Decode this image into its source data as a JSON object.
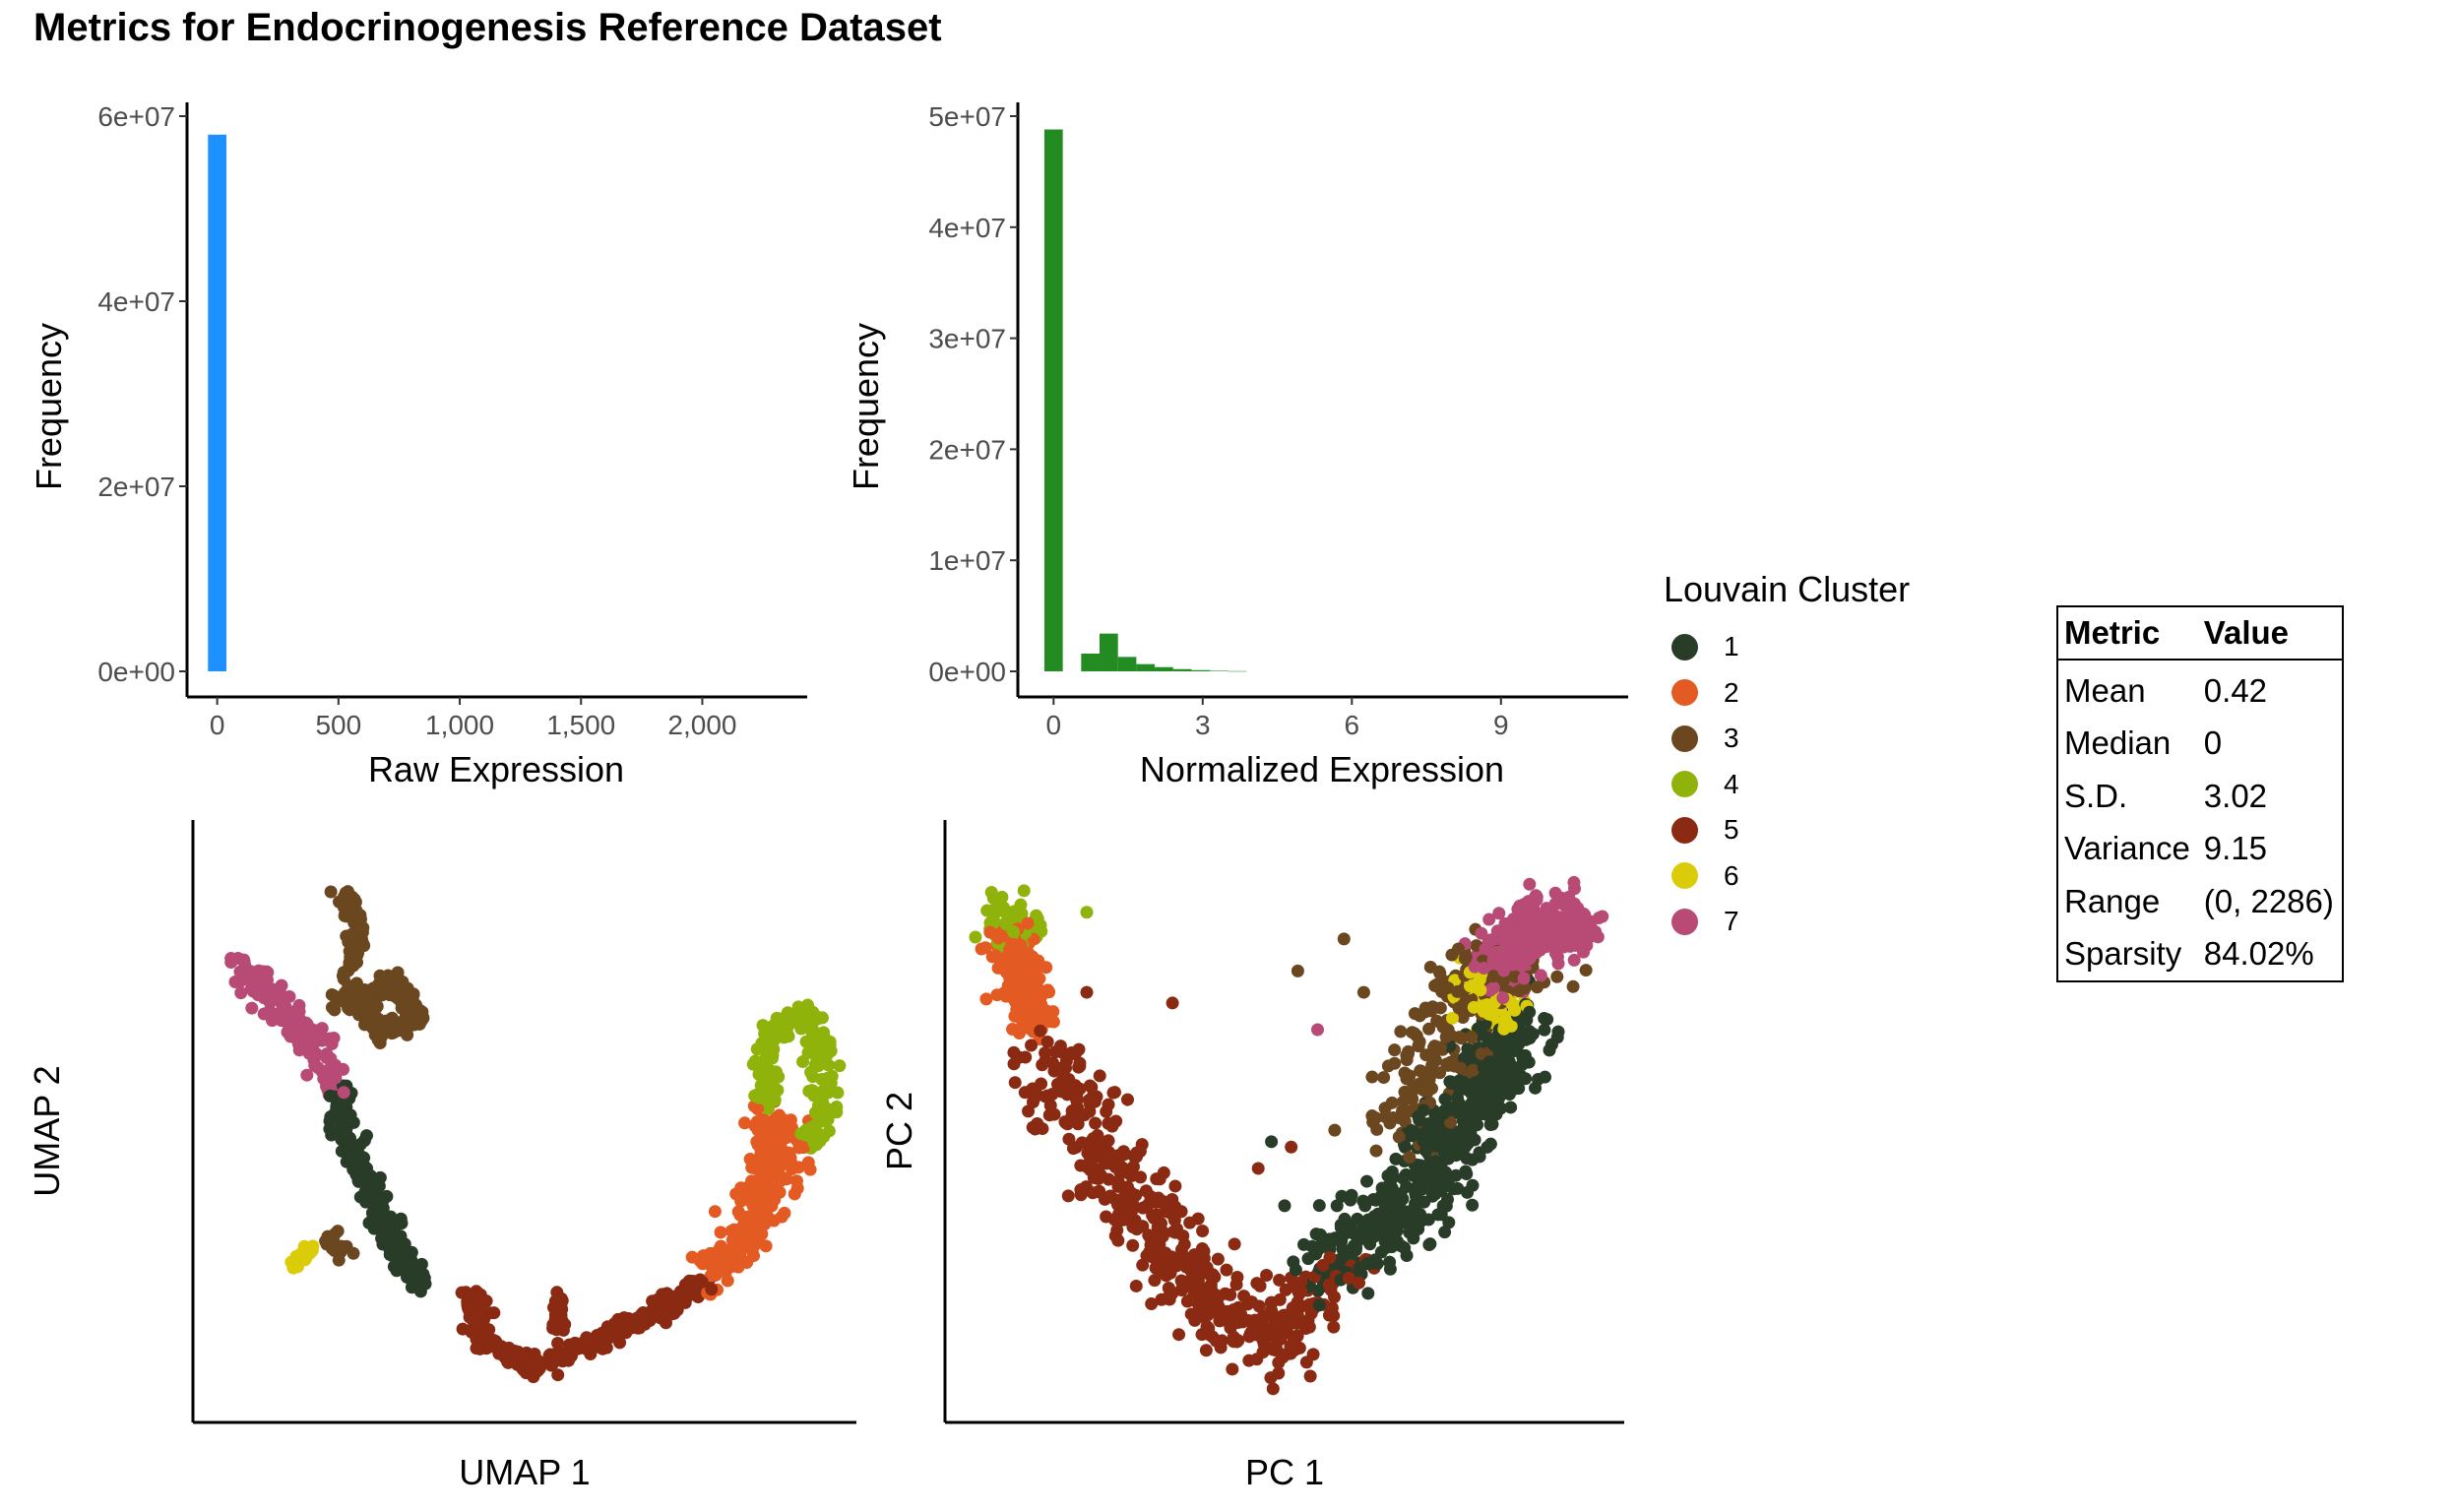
{
  "title": "Metrics for Endocrinogenesis Reference Dataset",
  "chart_data": [
    {
      "type": "bar",
      "name": "raw-expression-histogram",
      "xlabel": "Raw Expression",
      "ylabel": "Frequency",
      "xlim": [
        -100,
        2400
      ],
      "ylim": [
        0,
        60000000
      ],
      "xticks": [
        0,
        500,
        1000,
        1500,
        2000
      ],
      "xtick_labels": [
        "0",
        "500",
        "1,000",
        "1,500",
        "2,000"
      ],
      "yticks": [
        0,
        20000000,
        40000000,
        60000000
      ],
      "ytick_labels": [
        "0e+00",
        "2e+07",
        "4e+07",
        "6e+07"
      ],
      "bin_width": 76,
      "bins": [
        {
          "start": -38,
          "end": 38,
          "count": 58000000
        }
      ],
      "color": "#1e90ff",
      "grid": false
    },
    {
      "type": "bar",
      "name": "normalized-expression-histogram",
      "xlabel": "Normalized Expression",
      "ylabel": "Frequency",
      "xlim": [
        -0.6,
        11.4
      ],
      "ylim": [
        0,
        50000000
      ],
      "xticks": [
        0,
        3,
        6,
        9
      ],
      "xtick_labels": [
        "0",
        "3",
        "6",
        "9"
      ],
      "yticks": [
        0,
        10000000,
        20000000,
        30000000,
        40000000,
        50000000
      ],
      "ytick_labels": [
        "0e+00",
        "1e+07",
        "2e+07",
        "3e+07",
        "4e+07",
        "5e+07"
      ],
      "bin_width": 0.37,
      "bins": [
        {
          "start": -0.185,
          "end": 0.185,
          "count": 48800000
        },
        {
          "start": 0.555,
          "end": 0.925,
          "count": 1600000
        },
        {
          "start": 0.925,
          "end": 1.295,
          "count": 3400000
        },
        {
          "start": 1.295,
          "end": 1.665,
          "count": 1300000
        },
        {
          "start": 1.665,
          "end": 2.035,
          "count": 650000
        },
        {
          "start": 2.035,
          "end": 2.405,
          "count": 380000
        },
        {
          "start": 2.405,
          "end": 2.775,
          "count": 200000
        },
        {
          "start": 2.775,
          "end": 3.145,
          "count": 110000
        },
        {
          "start": 3.145,
          "end": 3.515,
          "count": 50000
        },
        {
          "start": 3.515,
          "end": 3.885,
          "count": 20000
        }
      ],
      "color": "#228b22",
      "grid": false
    },
    {
      "type": "scatter",
      "name": "umap-scatter",
      "xlabel": "UMAP 1",
      "ylabel": "UMAP 2",
      "xlim": [
        0,
        1
      ],
      "ylim": [
        0,
        1
      ],
      "show_ticks": false,
      "grid": false,
      "cluster_paths": [
        {
          "cluster": "7",
          "n": 160,
          "spread": 0.014,
          "points": [
            [
              0.05,
              0.81
            ],
            [
              0.1,
              0.76
            ],
            [
              0.15,
              0.7
            ],
            [
              0.19,
              0.62
            ],
            [
              0.21,
              0.57
            ]
          ]
        },
        {
          "cluster": "3",
          "n": 220,
          "spread": 0.01,
          "points": [
            [
              0.22,
              0.95
            ],
            [
              0.24,
              0.88
            ],
            [
              0.23,
              0.81
            ],
            [
              0.22,
              0.74
            ],
            [
              0.3,
              0.78
            ],
            [
              0.33,
              0.71
            ],
            [
              0.28,
              0.68
            ],
            [
              0.24,
              0.76
            ]
          ]
        },
        {
          "cluster": "3",
          "n": 22,
          "spread": 0.008,
          "points": [
            [
              0.19,
              0.3
            ],
            [
              0.22,
              0.27
            ]
          ]
        },
        {
          "cluster": "1",
          "n": 220,
          "spread": 0.011,
          "points": [
            [
              0.21,
              0.58
            ],
            [
              0.22,
              0.5
            ],
            [
              0.25,
              0.42
            ],
            [
              0.28,
              0.34
            ],
            [
              0.3,
              0.27
            ],
            [
              0.34,
              0.21
            ]
          ]
        },
        {
          "cluster": "6",
          "n": 22,
          "spread": 0.005,
          "points": [
            [
              0.14,
              0.25
            ],
            [
              0.17,
              0.28
            ]
          ]
        },
        {
          "cluster": "5",
          "n": 320,
          "spread": 0.01,
          "points": [
            [
              0.42,
              0.2
            ],
            [
              0.43,
              0.12
            ],
            [
              0.47,
              0.08
            ],
            [
              0.52,
              0.06
            ],
            [
              0.6,
              0.1
            ],
            [
              0.7,
              0.16
            ],
            [
              0.78,
              0.22
            ]
          ]
        },
        {
          "cluster": "5",
          "n": 30,
          "spread": 0.008,
          "points": [
            [
              0.55,
              0.19
            ],
            [
              0.55,
              0.12
            ]
          ]
        },
        {
          "cluster": "2",
          "n": 260,
          "spread": 0.018,
          "points": [
            [
              0.78,
              0.23
            ],
            [
              0.84,
              0.29
            ],
            [
              0.87,
              0.36
            ],
            [
              0.87,
              0.44
            ],
            [
              0.88,
              0.52
            ],
            [
              0.91,
              0.42
            ]
          ]
        },
        {
          "cluster": "4",
          "n": 200,
          "spread": 0.01,
          "points": [
            [
              0.87,
              0.55
            ],
            [
              0.88,
              0.6
            ],
            [
              0.87,
              0.66
            ],
            [
              0.91,
              0.71
            ],
            [
              0.94,
              0.72
            ],
            [
              0.96,
              0.64
            ],
            [
              0.96,
              0.52
            ],
            [
              0.94,
              0.47
            ]
          ]
        }
      ]
    },
    {
      "type": "scatter",
      "name": "pca-scatter",
      "xlabel": "PC 1",
      "ylabel": "PC 2",
      "xlim": [
        0,
        1
      ],
      "ylim": [
        0,
        1
      ],
      "show_ticks": false,
      "grid": false,
      "cluster_paths": [
        {
          "cluster": "4",
          "n": 70,
          "spread": 0.02,
          "points": [
            [
              0.07,
              0.91
            ],
            [
              0.1,
              0.87
            ]
          ]
        },
        {
          "cluster": "2",
          "n": 170,
          "spread": 0.02,
          "points": [
            [
              0.08,
              0.87
            ],
            [
              0.1,
              0.78
            ],
            [
              0.13,
              0.7
            ]
          ]
        },
        {
          "cluster": "5",
          "n": 480,
          "spread": 0.03,
          "points": [
            [
              0.14,
              0.64
            ],
            [
              0.2,
              0.5
            ],
            [
              0.27,
              0.37
            ],
            [
              0.35,
              0.25
            ],
            [
              0.42,
              0.14
            ],
            [
              0.47,
              0.1
            ],
            [
              0.52,
              0.17
            ],
            [
              0.58,
              0.23
            ]
          ]
        },
        {
          "cluster": "1",
          "n": 520,
          "spread": 0.034,
          "points": [
            [
              0.56,
              0.24
            ],
            [
              0.65,
              0.32
            ],
            [
              0.72,
              0.42
            ],
            [
              0.77,
              0.52
            ],
            [
              0.82,
              0.63
            ],
            [
              0.86,
              0.7
            ]
          ]
        },
        {
          "cluster": "3",
          "n": 200,
          "spread": 0.034,
          "points": [
            [
              0.68,
              0.5
            ],
            [
              0.74,
              0.68
            ],
            [
              0.78,
              0.78
            ],
            [
              0.84,
              0.81
            ],
            [
              0.88,
              0.8
            ]
          ]
        },
        {
          "cluster": "6",
          "n": 60,
          "spread": 0.018,
          "points": [
            [
              0.76,
              0.78
            ],
            [
              0.81,
              0.76
            ],
            [
              0.83,
              0.69
            ]
          ]
        },
        {
          "cluster": "7",
          "n": 260,
          "spread": 0.028,
          "points": [
            [
              0.82,
              0.79
            ],
            [
              0.87,
              0.86
            ],
            [
              0.91,
              0.91
            ],
            [
              0.93,
              0.85
            ]
          ]
        }
      ],
      "outliers": [
        {
          "cluster": "5",
          "points": [
            [
              0.33,
              0.74
            ],
            [
              0.2,
              0.76
            ],
            [
              0.51,
              0.47
            ],
            [
              0.46,
              0.43
            ]
          ]
        },
        {
          "cluster": "3",
          "points": [
            [
              0.59,
              0.86
            ],
            [
              0.52,
              0.8
            ],
            [
              0.62,
              0.76
            ]
          ]
        },
        {
          "cluster": "1",
          "points": [
            [
              0.48,
              0.48
            ],
            [
              0.5,
              0.36
            ]
          ]
        },
        {
          "cluster": "4",
          "points": [
            [
              0.2,
              0.91
            ]
          ]
        },
        {
          "cluster": "7",
          "points": [
            [
              0.55,
              0.69
            ]
          ]
        }
      ]
    }
  ],
  "legend": {
    "title": "Louvain Cluster",
    "items": [
      {
        "label": "1",
        "color": "#283c28"
      },
      {
        "label": "2",
        "color": "#e35a22"
      },
      {
        "label": "3",
        "color": "#6b4720"
      },
      {
        "label": "4",
        "color": "#8fb30b"
      },
      {
        "label": "5",
        "color": "#8b2a12"
      },
      {
        "label": "6",
        "color": "#dbcc09"
      },
      {
        "label": "7",
        "color": "#b84a76"
      }
    ]
  },
  "metrics_table": {
    "headers": [
      "Metric",
      "Value"
    ],
    "rows": [
      [
        "Mean",
        "0.42"
      ],
      [
        "Median",
        "0"
      ],
      [
        "S.D.",
        "3.02"
      ],
      [
        "Variance",
        "9.15"
      ],
      [
        "Range",
        "(0, 2286)"
      ],
      [
        "Sparsity",
        "84.02%"
      ]
    ]
  }
}
